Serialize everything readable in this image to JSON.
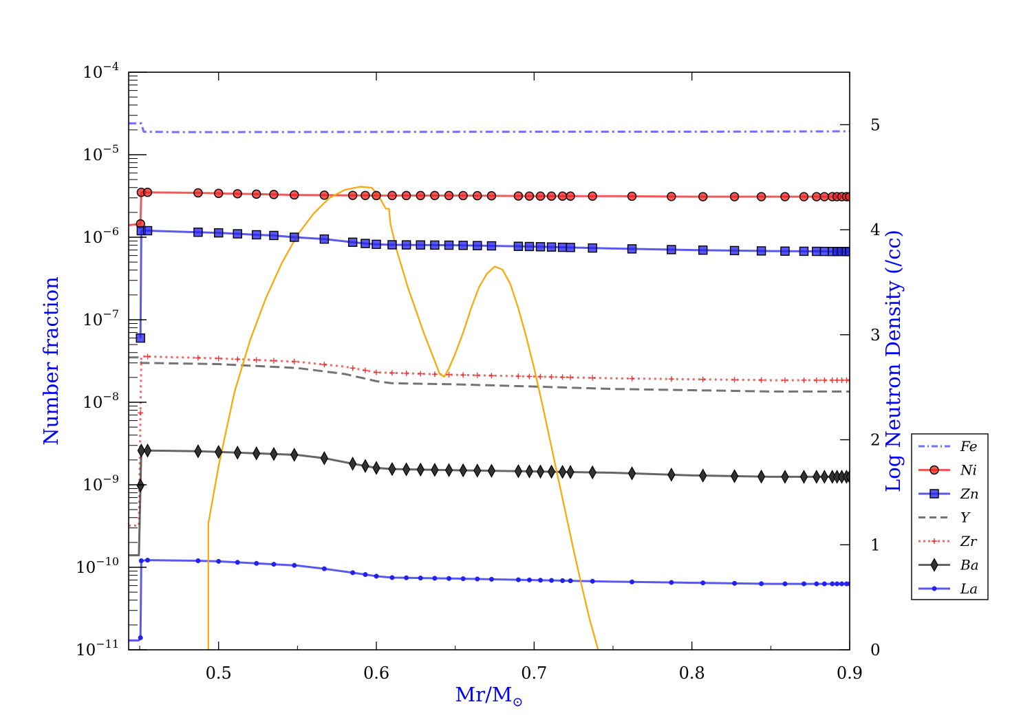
{
  "chart_data": {
    "type": "line",
    "xlabel": "Mr/M",
    "xlabel_sub": "⊙",
    "ylabel_left": "Number fraction",
    "ylabel_right": "Log Neutron Density (/cc)",
    "xlim": [
      0.443,
      0.9
    ],
    "ylim_left": [
      1e-11,
      0.0001
    ],
    "yscale_left": "log",
    "ylim_right": [
      0,
      5.5
    ],
    "x_ticks": [
      0.5,
      0.6,
      0.7,
      0.8,
      0.9
    ],
    "x_tick_labels": [
      "0.5",
      "0.6",
      "0.7",
      "0.8",
      "0.9"
    ],
    "y_left_ticks": [
      {
        "base": "10",
        "exp": "−4",
        "value": 0.0001
      },
      {
        "base": "10",
        "exp": "−5",
        "value": 1e-05
      },
      {
        "base": "10",
        "exp": "−6",
        "value": 1e-06
      },
      {
        "base": "10",
        "exp": "−7",
        "value": 1e-07
      },
      {
        "base": "10",
        "exp": "−8",
        "value": 1e-08
      },
      {
        "base": "10",
        "exp": "−9",
        "value": 1e-09
      },
      {
        "base": "10",
        "exp": "−10",
        "value": 1e-10
      },
      {
        "base": "10",
        "exp": "−11",
        "value": 1e-11
      }
    ],
    "y_right_ticks": [
      0,
      1,
      2,
      3,
      4,
      5
    ],
    "y_right_tick_labels": [
      "0",
      "1",
      "2",
      "3",
      "4",
      "5"
    ],
    "legend_placement": "right, outside plot",
    "colors": {
      "label_blue": "#0000ff",
      "axis": "#000000",
      "neutron_density": "#ffa500"
    },
    "series": [
      {
        "name": "Fe",
        "axis": "left",
        "color": "#4040ff",
        "style": "dashdot",
        "marker": "none",
        "points": [
          [
            0.443,
            2.4e-05
          ],
          [
            0.451,
            2.4e-05
          ],
          [
            0.4525,
            1.9e-05
          ],
          [
            0.47,
            1.88e-05
          ],
          [
            0.5,
            1.88e-05
          ],
          [
            0.6,
            1.89e-05
          ],
          [
            0.7,
            1.9e-05
          ],
          [
            0.8,
            1.9e-05
          ],
          [
            0.9,
            1.92e-05
          ]
        ]
      },
      {
        "name": "Ni",
        "axis": "left",
        "color": "#ee2222",
        "style": "solid",
        "marker": "circle",
        "points": [
          [
            0.443,
            1.4e-06
          ],
          [
            0.4505,
            1.45e-06
          ],
          [
            0.451,
            3.5e-06
          ],
          [
            0.455,
            3.5e-06
          ],
          [
            0.487,
            3.45e-06
          ],
          [
            0.5,
            3.4e-06
          ],
          [
            0.55,
            3.25e-06
          ],
          [
            0.6,
            3.2e-06
          ],
          [
            0.65,
            3.2e-06
          ],
          [
            0.7,
            3.15e-06
          ],
          [
            0.75,
            3.15e-06
          ],
          [
            0.8,
            3.1e-06
          ],
          [
            0.85,
            3.1e-06
          ],
          [
            0.9,
            3.1e-06
          ]
        ],
        "markers_x": [
          0.4505,
          0.451,
          0.455,
          0.487,
          0.5,
          0.512,
          0.524,
          0.535,
          0.548,
          0.567,
          0.585,
          0.593,
          0.6,
          0.61,
          0.619,
          0.628,
          0.637,
          0.646,
          0.655,
          0.664,
          0.673,
          0.69,
          0.697,
          0.704,
          0.711,
          0.718,
          0.723,
          0.737,
          0.762,
          0.787,
          0.807,
          0.827,
          0.844,
          0.859,
          0.871,
          0.879,
          0.884,
          0.889,
          0.892,
          0.895,
          0.898,
          0.9
        ]
      },
      {
        "name": "Zn",
        "axis": "left",
        "color": "#2222ee",
        "style": "solid",
        "marker": "square",
        "points": [
          [
            0.4505,
            6e-08
          ],
          [
            0.451,
            1.2e-06
          ],
          [
            0.455,
            1.2e-06
          ],
          [
            0.487,
            1.15e-06
          ],
          [
            0.5,
            1.13e-06
          ],
          [
            0.512,
            1.1e-06
          ],
          [
            0.524,
            1.07e-06
          ],
          [
            0.535,
            1.05e-06
          ],
          [
            0.548,
            1e-06
          ],
          [
            0.567,
            9.5e-07
          ],
          [
            0.585,
            8.7e-07
          ],
          [
            0.593,
            8.4e-07
          ],
          [
            0.6,
            8.2e-07
          ],
          [
            0.61,
            8.1e-07
          ],
          [
            0.65,
            8e-07
          ],
          [
            0.7,
            7.7e-07
          ],
          [
            0.75,
            7.3e-07
          ],
          [
            0.8,
            7e-07
          ],
          [
            0.85,
            6.8e-07
          ],
          [
            0.9,
            6.7e-07
          ]
        ],
        "markers_x": [
          0.4505,
          0.451,
          0.455,
          0.487,
          0.5,
          0.512,
          0.524,
          0.535,
          0.548,
          0.567,
          0.585,
          0.593,
          0.6,
          0.61,
          0.619,
          0.628,
          0.637,
          0.646,
          0.655,
          0.664,
          0.673,
          0.69,
          0.697,
          0.704,
          0.711,
          0.718,
          0.723,
          0.737,
          0.762,
          0.787,
          0.807,
          0.827,
          0.844,
          0.859,
          0.871,
          0.879,
          0.884,
          0.889,
          0.892,
          0.895,
          0.898,
          0.9
        ]
      },
      {
        "name": "Y",
        "axis": "left",
        "color": "#444444",
        "style": "dashed",
        "marker": "none",
        "points": [
          [
            0.443,
            3.5e-08
          ],
          [
            0.449,
            3.5e-08
          ],
          [
            0.451,
            3e-08
          ],
          [
            0.5,
            2.9e-08
          ],
          [
            0.55,
            2.6e-08
          ],
          [
            0.58,
            2.2e-08
          ],
          [
            0.6,
            1.8e-08
          ],
          [
            0.61,
            1.7e-08
          ],
          [
            0.65,
            1.65e-08
          ],
          [
            0.7,
            1.55e-08
          ],
          [
            0.75,
            1.45e-08
          ],
          [
            0.8,
            1.4e-08
          ],
          [
            0.85,
            1.35e-08
          ],
          [
            0.9,
            1.35e-08
          ]
        ]
      },
      {
        "name": "Zr",
        "axis": "left",
        "color": "#ee3333",
        "style": "dotted",
        "marker": "plus",
        "points": [
          [
            0.443,
            3.2e-10
          ],
          [
            0.4495,
            3.2e-10
          ],
          [
            0.451,
            3.6e-08
          ],
          [
            0.5,
            3.4e-08
          ],
          [
            0.55,
            3.1e-08
          ],
          [
            0.58,
            2.7e-08
          ],
          [
            0.6,
            2.3e-08
          ],
          [
            0.65,
            2.15e-08
          ],
          [
            0.7,
            2.05e-08
          ],
          [
            0.75,
            1.95e-08
          ],
          [
            0.8,
            1.9e-08
          ],
          [
            0.85,
            1.85e-08
          ],
          [
            0.9,
            1.85e-08
          ]
        ],
        "markers_x": [
          0.4505,
          0.455,
          0.487,
          0.5,
          0.512,
          0.524,
          0.535,
          0.548,
          0.567,
          0.585,
          0.593,
          0.6,
          0.61,
          0.619,
          0.628,
          0.637,
          0.646,
          0.655,
          0.664,
          0.673,
          0.69,
          0.697,
          0.704,
          0.711,
          0.718,
          0.723,
          0.737,
          0.762,
          0.787,
          0.807,
          0.827,
          0.844,
          0.859,
          0.871,
          0.879,
          0.884,
          0.889,
          0.892,
          0.895,
          0.898,
          0.9
        ]
      },
      {
        "name": "Ba",
        "axis": "left",
        "color": "#333333",
        "style": "solid",
        "marker": "diamond",
        "points": [
          [
            0.443,
            1.4e-10
          ],
          [
            0.4495,
            1.4e-10
          ],
          [
            0.451,
            2.6e-09
          ],
          [
            0.455,
            2.6e-09
          ],
          [
            0.487,
            2.55e-09
          ],
          [
            0.5,
            2.5e-09
          ],
          [
            0.55,
            2.3e-09
          ],
          [
            0.567,
            2.1e-09
          ],
          [
            0.585,
            1.8e-09
          ],
          [
            0.6,
            1.6e-09
          ],
          [
            0.61,
            1.55e-09
          ],
          [
            0.65,
            1.5e-09
          ],
          [
            0.7,
            1.45e-09
          ],
          [
            0.75,
            1.4e-09
          ],
          [
            0.8,
            1.3e-09
          ],
          [
            0.85,
            1.25e-09
          ],
          [
            0.9,
            1.25e-09
          ]
        ],
        "markers_x": [
          0.4505,
          0.451,
          0.455,
          0.487,
          0.5,
          0.512,
          0.524,
          0.535,
          0.548,
          0.567,
          0.585,
          0.593,
          0.6,
          0.61,
          0.619,
          0.628,
          0.637,
          0.646,
          0.655,
          0.664,
          0.673,
          0.69,
          0.697,
          0.704,
          0.711,
          0.718,
          0.723,
          0.737,
          0.762,
          0.787,
          0.807,
          0.827,
          0.844,
          0.859,
          0.871,
          0.879,
          0.884,
          0.889,
          0.892,
          0.895,
          0.898,
          0.9
        ]
      },
      {
        "name": "La",
        "axis": "left",
        "color": "#2222ee",
        "style": "solid",
        "marker": "dot",
        "points": [
          [
            0.443,
            1.3e-11
          ],
          [
            0.4495,
            1.3e-11
          ],
          [
            0.4505,
            1.4e-11
          ],
          [
            0.451,
            1.2e-10
          ],
          [
            0.455,
            1.22e-10
          ],
          [
            0.487,
            1.2e-10
          ],
          [
            0.5,
            1.18e-10
          ],
          [
            0.55,
            1.05e-10
          ],
          [
            0.567,
            9.6e-11
          ],
          [
            0.585,
            8.6e-11
          ],
          [
            0.6,
            7.8e-11
          ],
          [
            0.61,
            7.5e-11
          ],
          [
            0.65,
            7.3e-11
          ],
          [
            0.7,
            7e-11
          ],
          [
            0.75,
            6.7e-11
          ],
          [
            0.8,
            6.5e-11
          ],
          [
            0.85,
            6.3e-11
          ],
          [
            0.9,
            6.3e-11
          ]
        ],
        "markers_x": [
          0.4505,
          0.451,
          0.455,
          0.487,
          0.5,
          0.512,
          0.524,
          0.535,
          0.548,
          0.567,
          0.585,
          0.593,
          0.6,
          0.61,
          0.619,
          0.628,
          0.637,
          0.646,
          0.655,
          0.664,
          0.673,
          0.69,
          0.697,
          0.704,
          0.711,
          0.718,
          0.723,
          0.737,
          0.762,
          0.787,
          0.807,
          0.827,
          0.844,
          0.859,
          0.871,
          0.879,
          0.884,
          0.889,
          0.892,
          0.895,
          0.898,
          0.9
        ]
      },
      {
        "axis": "right",
        "color": "#ffa500",
        "style": "solid",
        "marker": "none",
        "points": [
          [
            0.4935,
            0
          ],
          [
            0.4935,
            1.2
          ],
          [
            0.5,
            1.75
          ],
          [
            0.51,
            2.45
          ],
          [
            0.52,
            2.95
          ],
          [
            0.53,
            3.35
          ],
          [
            0.54,
            3.68
          ],
          [
            0.55,
            3.95
          ],
          [
            0.56,
            4.15
          ],
          [
            0.57,
            4.3
          ],
          [
            0.58,
            4.38
          ],
          [
            0.59,
            4.41
          ],
          [
            0.597,
            4.4
          ],
          [
            0.6,
            4.35
          ],
          [
            0.603,
            4.28
          ],
          [
            0.606,
            4.2
          ],
          [
            0.608,
            4.2
          ],
          [
            0.609,
            4.05
          ],
          [
            0.613,
            3.8
          ],
          [
            0.62,
            3.45
          ],
          [
            0.63,
            3.02
          ],
          [
            0.637,
            2.75
          ],
          [
            0.64,
            2.63
          ],
          [
            0.643,
            2.6
          ],
          [
            0.646,
            2.68
          ],
          [
            0.65,
            2.82
          ],
          [
            0.655,
            3.02
          ],
          [
            0.66,
            3.25
          ],
          [
            0.665,
            3.45
          ],
          [
            0.67,
            3.58
          ],
          [
            0.675,
            3.65
          ],
          [
            0.68,
            3.62
          ],
          [
            0.685,
            3.48
          ],
          [
            0.69,
            3.25
          ],
          [
            0.695,
            2.98
          ],
          [
            0.7,
            2.68
          ],
          [
            0.705,
            2.35
          ],
          [
            0.71,
            2.0
          ],
          [
            0.715,
            1.65
          ],
          [
            0.72,
            1.3
          ],
          [
            0.725,
            0.95
          ],
          [
            0.73,
            0.62
          ],
          [
            0.735,
            0.3
          ],
          [
            0.74,
            0.03
          ],
          [
            0.7405,
            0
          ]
        ]
      }
    ]
  }
}
